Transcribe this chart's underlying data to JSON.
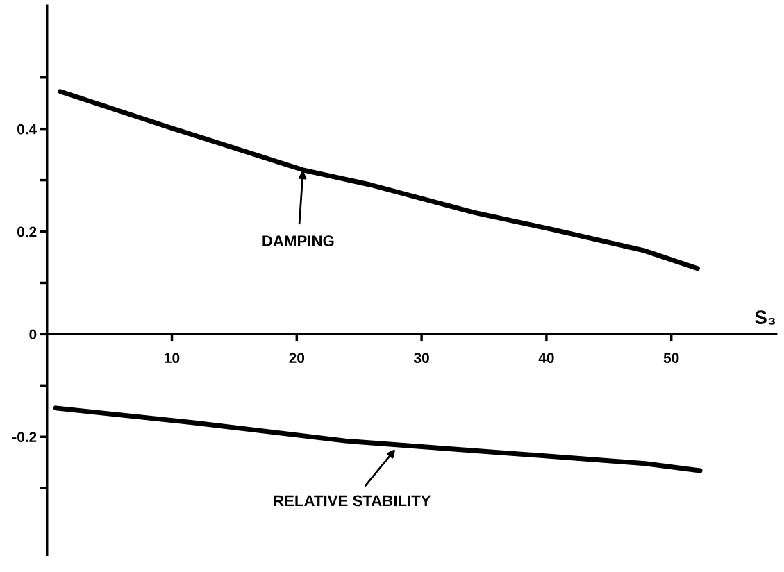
{
  "chart_data": {
    "type": "line",
    "xlabel": "S₃",
    "xlim": [
      0,
      58.4
    ],
    "xticks": [
      10,
      20,
      30,
      40,
      50
    ],
    "ylim": [
      -0.43,
      0.64
    ],
    "yticks": [
      {
        "value": 0.5,
        "label": null
      },
      0.4,
      {
        "value": 0.3,
        "label": null
      },
      0.2,
      {
        "value": 0.1,
        "label": null
      },
      0,
      {
        "value": -0.1,
        "label": null
      },
      -0.2,
      {
        "value": -0.3,
        "label": null
      }
    ],
    "series": [
      {
        "color": "#000000",
        "x": [
          1.05,
          9.8,
          20.5,
          25.9,
          34.2,
          40.5,
          47.8,
          52.1
        ],
        "values": [
          0.473,
          0.403,
          0.32,
          0.291,
          0.237,
          0.204,
          0.163,
          0.128
        ]
      },
      {
        "color": "#000000",
        "x": [
          0.7,
          11.9,
          23.9,
          35.9,
          47.9,
          52.3
        ],
        "values": [
          -0.144,
          -0.173,
          -0.208,
          -0.23,
          -0.252,
          -0.266
        ]
      }
    ],
    "annotations": [
      {
        "text": "DAMPING",
        "x": 20.5,
        "y": 0.32
      },
      {
        "text": "RELATIVE STABILITY",
        "x": 27.9,
        "y": -0.224
      }
    ],
    "grid": false,
    "marker": "none",
    "line_style": "solid"
  }
}
